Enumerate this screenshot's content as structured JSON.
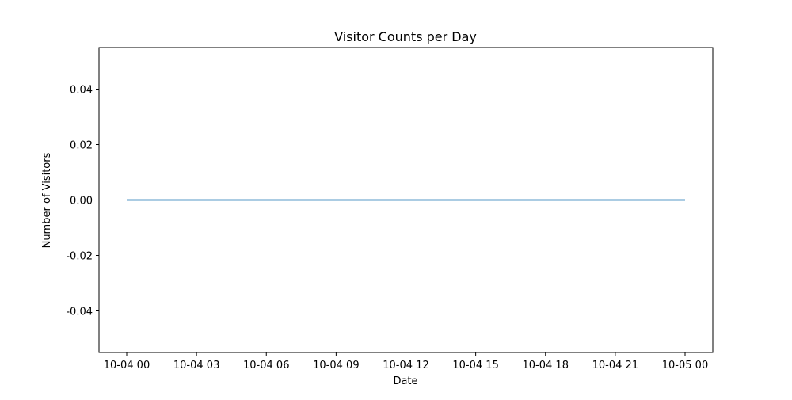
{
  "chart_data": {
    "type": "line",
    "title": "Visitor Counts per Day",
    "xlabel": "Date",
    "ylabel": "Number of Visitors",
    "x_ticks": [
      "10-04 00",
      "10-04 03",
      "10-04 06",
      "10-04 09",
      "10-04 12",
      "10-04 15",
      "10-04 18",
      "10-04 21",
      "10-05 00"
    ],
    "y_ticks": [
      "0.04",
      "0.02",
      "0.00",
      "-0.02",
      "-0.04"
    ],
    "y_tick_values": [
      0.04,
      0.02,
      0.0,
      -0.02,
      -0.04
    ],
    "xlim": [
      "10-04 00",
      "10-05 00"
    ],
    "ylim": [
      -0.055,
      0.055
    ],
    "series": [
      {
        "x": [
          "10-04 00",
          "10-05 00"
        ],
        "values": [
          0,
          0
        ],
        "color": "#1f77b4"
      }
    ],
    "grid": false,
    "legend": "none"
  }
}
